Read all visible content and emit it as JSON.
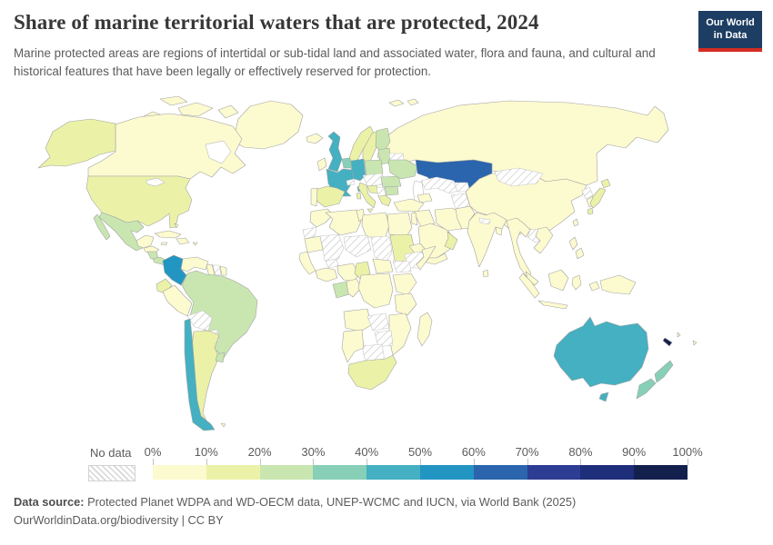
{
  "header": {
    "title": "Share of marine territorial waters that are protected, 2024",
    "subtitle": "Marine protected areas are regions of intertidal or sub-tidal land and associated water, flora and fauna, and cultural and historical features that have been legally or effectively reserved for protection.",
    "logo_line1": "Our World",
    "logo_line2": "in Data",
    "logo_bg": "#1d3d63",
    "logo_bar": "#d42b21"
  },
  "legend": {
    "no_data_label": "No data",
    "tick_labels": [
      "0%",
      "10%",
      "20%",
      "30%",
      "40%",
      "50%",
      "60%",
      "70%",
      "80%",
      "90%",
      "100%"
    ],
    "bins": [
      {
        "label": "0-10%",
        "color": "#fcfacf"
      },
      {
        "label": "10-20%",
        "color": "#ebf2a8"
      },
      {
        "label": "20-30%",
        "color": "#c9e6b1"
      },
      {
        "label": "30-40%",
        "color": "#87cfb7"
      },
      {
        "label": "40-50%",
        "color": "#44b0c1"
      },
      {
        "label": "50-60%",
        "color": "#2395c3"
      },
      {
        "label": "60-70%",
        "color": "#2a65ad"
      },
      {
        "label": "70-80%",
        "color": "#2c3d93"
      },
      {
        "label": "80-90%",
        "color": "#1f2e7b"
      },
      {
        "label": "90-100%",
        "color": "#13204e"
      }
    ]
  },
  "footer": {
    "source_label": "Data source:",
    "source_text": " Protected Planet WDPA and WD-OECM data, UNEP-WCMC and IUCN, via World Bank (2025)",
    "note": "OurWorldinData.org/biodiversity | CC BY"
  },
  "chart_data": {
    "type": "choropleth-map",
    "title": "Share of marine territorial waters that are protected, 2024",
    "unit": "% of marine territorial waters protected",
    "year": 2024,
    "no_data_label": "No data",
    "bins": [
      "0-10%",
      "10-20%",
      "20-30%",
      "30-40%",
      "40-50%",
      "50-60%",
      "60-70%",
      "70-80%",
      "80-90%",
      "90-100%"
    ],
    "countries": {
      "Canada": "0-10%",
      "Greenland": "0-10%",
      "United States": "10-20%",
      "Mexico": "20-30%",
      "Guatemala": "0-10%",
      "Honduras": "0-10%",
      "Nicaragua": "20-30%",
      "Panama": "20-30%",
      "Cuba": "0-10%",
      "Haiti": "0-10%",
      "Jamaica": "0-10%",
      "Bahamas": "0-10%",
      "Puerto Rico": "0-10%",
      "Colombia": "50-60%",
      "Venezuela": "0-10%",
      "Guyana": "0-10%",
      "Suriname": "No data",
      "French Guiana": "0-10%",
      "Ecuador": "10-20%",
      "Peru": "0-10%",
      "Brazil": "20-30%",
      "Bolivia": "No data",
      "Paraguay": "No data",
      "Argentina": "10-20%",
      "Uruguay": "20-30%",
      "Chile": "40-50%",
      "Falkland Islands": "0-10%",
      "Iceland": "0-10%",
      "United Kingdom": "40-50%",
      "Ireland": "0-10%",
      "Norway": "10-20%",
      "Sweden": "10-20%",
      "Finland": "20-30%",
      "Denmark": "20-30%",
      "Estonia": "20-30%",
      "Latvia": "20-30%",
      "Lithuania": "20-30%",
      "Belarus": "No data",
      "Poland": "20-30%",
      "Germany": "40-50%",
      "Netherlands": "30-40%",
      "Belgium": "30-40%",
      "France": "40-50%",
      "Spain": "10-20%",
      "Portugal": "0-10%",
      "Italy": "10-20%",
      "Switzerland": "No data",
      "Austria": "No data",
      "Serbia": "No data",
      "Greece": "10-20%",
      "Bulgaria": "20-30%",
      "Romania": "20-30%",
      "Ukraine": "20-30%",
      "Russia": "0-10%",
      "Svalbard": "0-10%",
      "Kazakhstan": "60-70%",
      "Georgia": "0-10%",
      "Turkey": "0-10%",
      "Iraq": "0-10%",
      "Israel": "0-10%",
      "Saudi Arabia": "0-10%",
      "Oman": "10-20%",
      "Yemen": "0-10%",
      "Iran": "0-10%",
      "Turkmenistan": "No data",
      "Kyrgyzstan": "No data",
      "Afghanistan": "No data",
      "Pakistan": "0-10%",
      "India": "0-10%",
      "Sri Lanka": "0-10%",
      "Bangladesh": "0-10%",
      "Nepal": "No data",
      "China": "0-10%",
      "Mongolia": "No data",
      "North Korea": "No data",
      "South Korea": "0-10%",
      "Japan": "10-20%",
      "Thailand": "0-10%",
      "Laos": "No data",
      "Vietnam": "0-10%",
      "Malaysia": "0-10%",
      "Indonesia": "0-10%",
      "Philippines": "0-10%",
      "Taiwan": "0-10%",
      "Papua New Guinea": "0-10%",
      "Australia": "40-50%",
      "New Zealand": "30-40%",
      "New Caledonia": "90-100%",
      "Fiji": "0-10%",
      "Vanuatu": "0-10%",
      "Morocco": "0-10%",
      "Western Sahara": "No data",
      "Mauritania": "0-10%",
      "Mali": "No data",
      "Senegal": "0-10%",
      "Burkina Faso": "No data",
      "Ghana": "0-10%",
      "Nigeria": "0-10%",
      "Algeria": "0-10%",
      "Tunisia": "0-10%",
      "Libya": "0-10%",
      "Niger": "No data",
      "Chad": "No data",
      "Egypt": "0-10%",
      "Sudan": "10-20%",
      "Eritrea": "0-10%",
      "Ethiopia": "No data",
      "Somalia": "0-10%",
      "South Sudan": "No data",
      "Central African Republic": "0-10%",
      "Cameroon": "10-20%",
      "Gabon": "20-30%",
      "Congo": "0-10%",
      "DR Congo": "0-10%",
      "Kenya": "0-10%",
      "Tanzania": "0-10%",
      "Angola": "0-10%",
      "Zambia": "No data",
      "Mozambique": "0-10%",
      "Zimbabwe": "No data",
      "Botswana": "No data",
      "Namibia": "0-10%",
      "South Africa": "10-20%",
      "Madagascar": "0-10%"
    }
  }
}
